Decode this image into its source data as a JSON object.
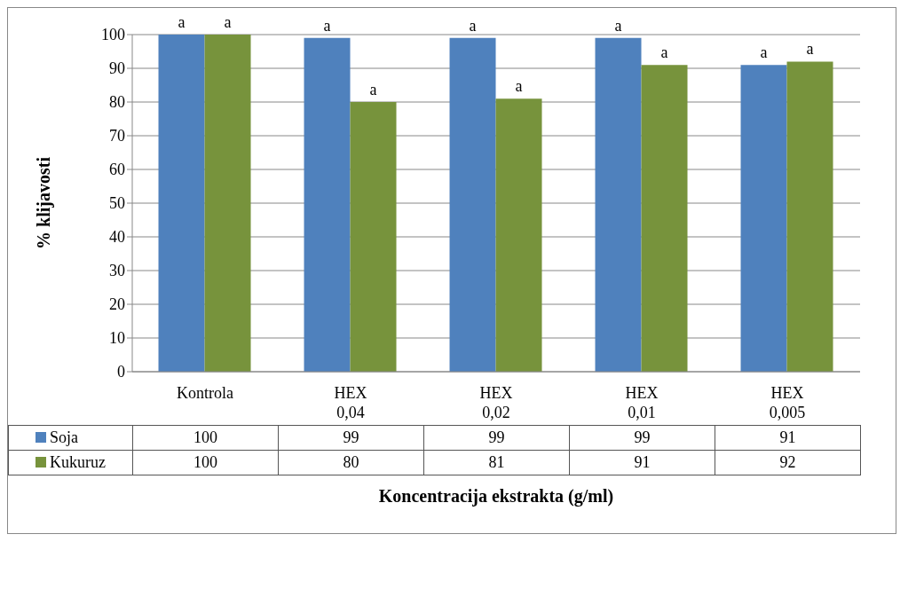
{
  "chart_data": {
    "type": "bar",
    "xlabel": "Koncentracija ekstrakta (g/ml)",
    "ylabel": "% klijavosti",
    "categories": [
      "Kontrola",
      "HEX 0,04",
      "HEX 0,02",
      "HEX 0,01",
      "HEX 0,005"
    ],
    "series": [
      {
        "name": "Soja",
        "color": "#4f81bd",
        "values": [
          100,
          99,
          99,
          99,
          91
        ]
      },
      {
        "name": "Kukuruz",
        "color": "#77933c",
        "values": [
          100,
          80,
          81,
          91,
          92
        ]
      }
    ],
    "ylim": [
      0,
      100
    ],
    "yticks": [
      0,
      10,
      20,
      30,
      40,
      50,
      60,
      70,
      80,
      90,
      100
    ],
    "grid": "y",
    "legend": "bottom",
    "data_labels": true,
    "annotations": [
      {
        "text": "a",
        "x": "Kontrola",
        "y": 100
      },
      {
        "text": "a",
        "x": "Kontrola",
        "y": 100
      },
      {
        "text": "a",
        "x": "HEX 0,04",
        "y": 99
      },
      {
        "text": "a",
        "x": "HEX 0,04",
        "y": 80
      },
      {
        "text": "a",
        "x": "HEX 0,02",
        "y": 99
      },
      {
        "text": "a",
        "x": "HEX 0,02",
        "y": 81
      },
      {
        "text": "a",
        "x": "HEX 0,01",
        "y": 99
      },
      {
        "text": "a",
        "x": "HEX 0,01",
        "y": 91
      },
      {
        "text": "a",
        "x": "HEX 0,005",
        "y": 91
      },
      {
        "text": "a",
        "x": "HEX 0,005",
        "y": 92
      }
    ]
  }
}
